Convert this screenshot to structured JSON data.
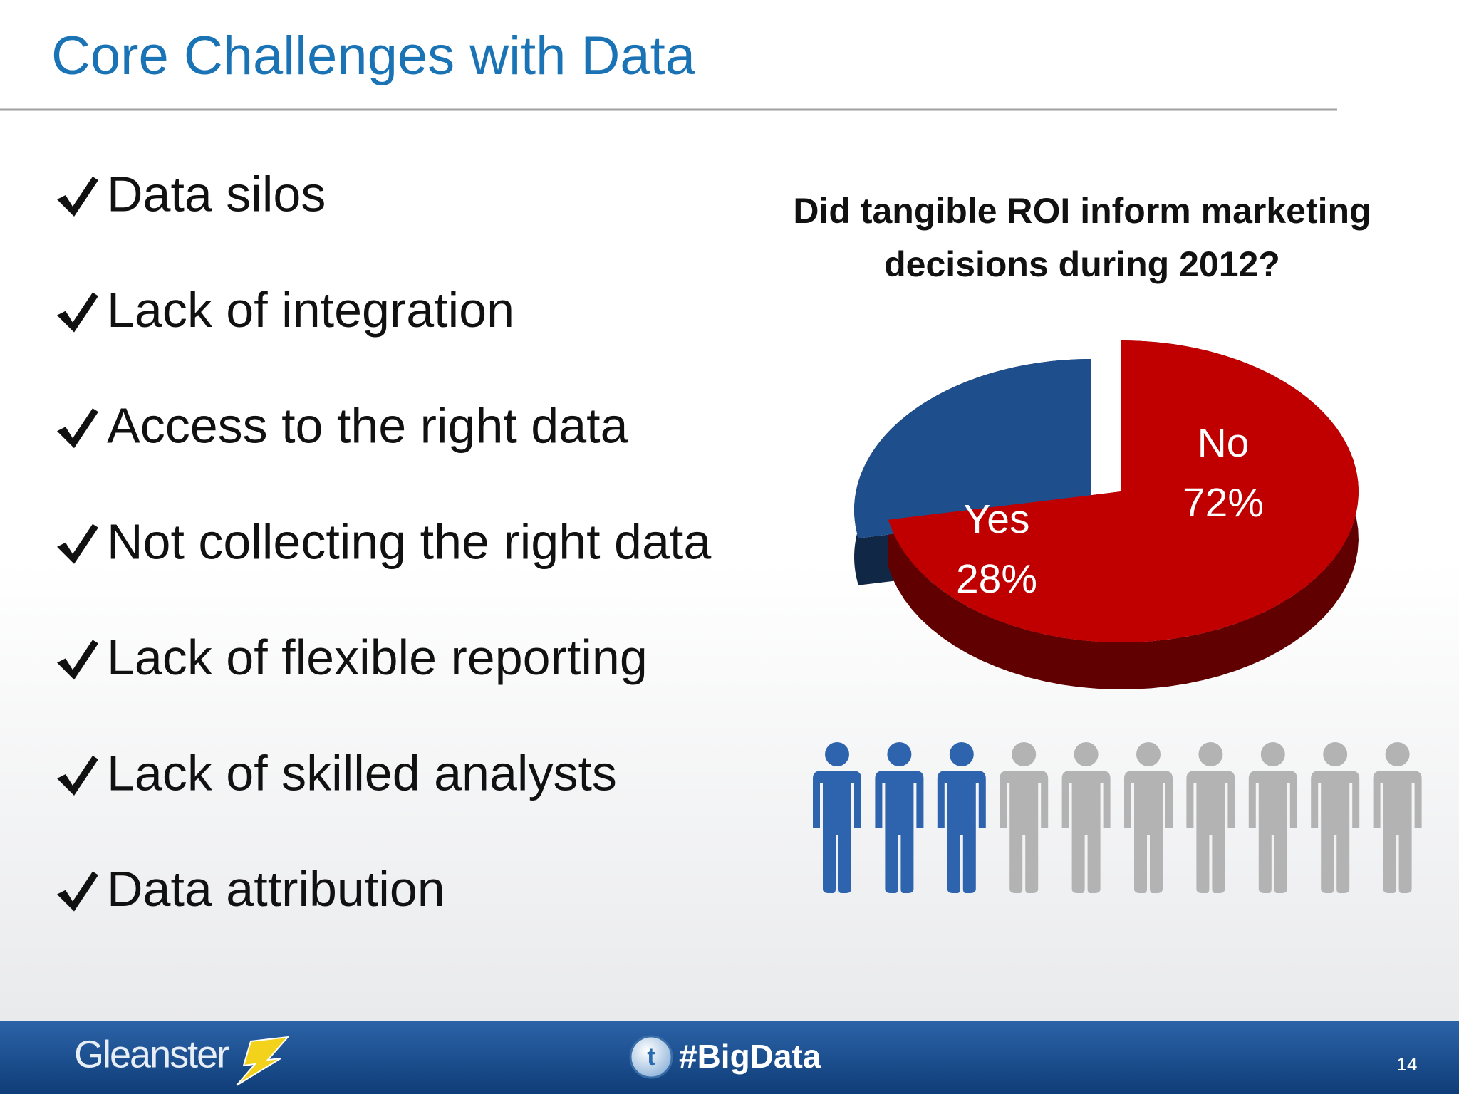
{
  "header": {
    "title": "Core Challenges with Data"
  },
  "bullets": [
    "Data silos",
    "Lack of integration",
    "Access to the right data",
    "Not collecting the right data",
    "Lack of flexible reporting",
    "Lack of skilled analysts",
    "Data attribution"
  ],
  "chart_data": {
    "type": "pie",
    "title": "Did tangible ROI inform marketing decisions during 2012?",
    "categories": [
      "Yes",
      "No"
    ],
    "values": [
      28,
      72
    ],
    "value_labels": [
      "28%",
      "72%"
    ],
    "colors": [
      "#1f4e8c",
      "#c00000"
    ]
  },
  "footer": {
    "brand": "Gleanster",
    "hashtag": "#BigData",
    "page_number": "14"
  }
}
